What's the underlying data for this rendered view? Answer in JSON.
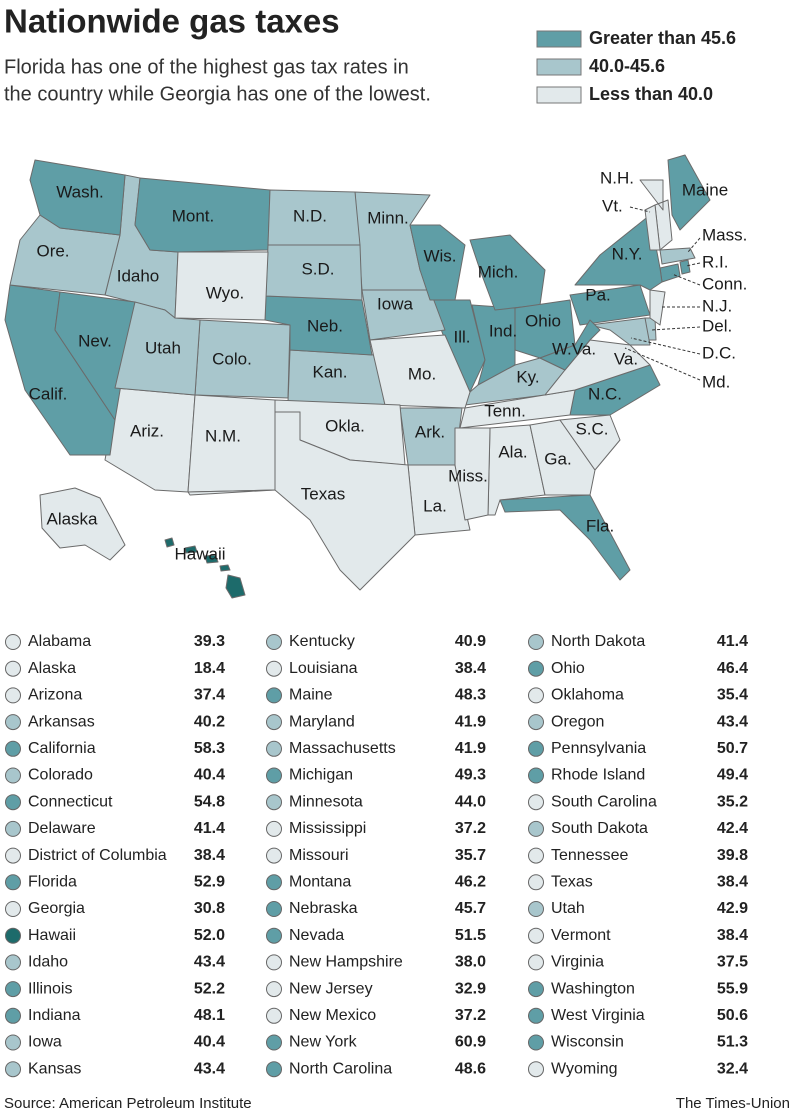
{
  "header": {
    "title": "Nationwide gas taxes",
    "subtitle": [
      "Florida has one of the highest gas tax rates in",
      "the country while Georgia has one of the lowest."
    ]
  },
  "legend": [
    {
      "label": "Greater than 45.6",
      "color": "#5f9ea6"
    },
    {
      "label": "40.0-45.6",
      "color": "#a8c6cc"
    },
    {
      "label": "Less than 40.0",
      "color": "#e2e9eb"
    }
  ],
  "table": {
    "rows": [
      {
        "name": "Alabama",
        "abbr": "Ala.",
        "value": 39.3,
        "color": "#e2e9eb"
      },
      {
        "name": "Alaska",
        "abbr": "Alaska",
        "value": 18.4,
        "color": "#e2e9eb"
      },
      {
        "name": "Arizona",
        "abbr": "Ariz.",
        "value": 37.4,
        "color": "#e2e9eb"
      },
      {
        "name": "Arkansas",
        "abbr": "Ark.",
        "value": 40.2,
        "color": "#a8c6cc"
      },
      {
        "name": "California",
        "abbr": "Calif.",
        "value": 58.3,
        "color": "#5f9ea6"
      },
      {
        "name": "Colorado",
        "abbr": "Colo.",
        "value": 40.4,
        "color": "#a8c6cc"
      },
      {
        "name": "Connecticut",
        "abbr": "Conn.",
        "value": 54.8,
        "color": "#5f9ea6"
      },
      {
        "name": "Delaware",
        "abbr": "Del.",
        "value": 41.4,
        "color": "#a8c6cc"
      },
      {
        "name": "District of Columbia",
        "abbr": "D.C.",
        "value": 38.4,
        "color": "#e2e9eb"
      },
      {
        "name": "Florida",
        "abbr": "Fla.",
        "value": 52.9,
        "color": "#5f9ea6"
      },
      {
        "name": "Georgia",
        "abbr": "Ga.",
        "value": 30.8,
        "color": "#e2e9eb"
      },
      {
        "name": "Hawaii",
        "abbr": "Hawaii",
        "value": 52,
        "label": "52.0",
        "color": "#1d6b6b"
      },
      {
        "name": "Idaho",
        "abbr": "Idaho",
        "value": 43.4,
        "color": "#a8c6cc"
      },
      {
        "name": "Illinois",
        "abbr": "Ill.",
        "value": 52.2,
        "color": "#5f9ea6"
      },
      {
        "name": "Indiana",
        "abbr": "Ind.",
        "value": 48.1,
        "color": "#5f9ea6"
      },
      {
        "name": "Iowa",
        "abbr": "Iowa",
        "value": 40.4,
        "color": "#a8c6cc"
      },
      {
        "name": "Kansas",
        "abbr": "Kan.",
        "value": 43.4,
        "color": "#a8c6cc"
      },
      {
        "name": "Kentucky",
        "abbr": "Ky.",
        "value": 40.9,
        "color": "#a8c6cc"
      },
      {
        "name": "Louisiana",
        "abbr": "La.",
        "value": 38.4,
        "color": "#e2e9eb"
      },
      {
        "name": "Maine",
        "abbr": "Maine",
        "value": 48.3,
        "color": "#5f9ea6"
      },
      {
        "name": "Maryland",
        "abbr": "Md.",
        "value": 41.9,
        "color": "#a8c6cc"
      },
      {
        "name": "Massachusetts",
        "abbr": "Mass.",
        "value": 41.9,
        "color": "#a8c6cc"
      },
      {
        "name": "Michigan",
        "abbr": "Mich.",
        "value": 49.3,
        "color": "#5f9ea6"
      },
      {
        "name": "Minnesota",
        "abbr": "Minn.",
        "value": 44,
        "label": "44.0",
        "color": "#a8c6cc"
      },
      {
        "name": "Mississippi",
        "abbr": "Miss.",
        "value": 37.2,
        "color": "#e2e9eb"
      },
      {
        "name": "Missouri",
        "abbr": "Mo.",
        "value": 35.7,
        "color": "#e2e9eb"
      },
      {
        "name": "Montana",
        "abbr": "Mont.",
        "value": 46.2,
        "color": "#5f9ea6"
      },
      {
        "name": "Nebraska",
        "abbr": "Neb.",
        "value": 45.7,
        "color": "#5f9ea6"
      },
      {
        "name": "Nevada",
        "abbr": "Nev.",
        "value": 51.5,
        "color": "#5f9ea6"
      },
      {
        "name": "New Hampshire",
        "abbr": "N.H.",
        "value": 38,
        "label": "38.0",
        "color": "#e2e9eb"
      },
      {
        "name": "New Jersey",
        "abbr": "N.J.",
        "value": 32.9,
        "color": "#e2e9eb"
      },
      {
        "name": "New Mexico",
        "abbr": "N.M.",
        "value": 37.2,
        "color": "#e2e9eb"
      },
      {
        "name": "New York",
        "abbr": "N.Y.",
        "value": 60.9,
        "color": "#5f9ea6"
      },
      {
        "name": "North Carolina",
        "abbr": "N.C.",
        "value": 48.6,
        "color": "#5f9ea6"
      },
      {
        "name": "North Dakota",
        "abbr": "N.D.",
        "value": 41.4,
        "color": "#a8c6cc"
      },
      {
        "name": "Ohio",
        "abbr": "Ohio",
        "value": 46.4,
        "color": "#5f9ea6"
      },
      {
        "name": "Oklahoma",
        "abbr": "Okla.",
        "value": 35.4,
        "color": "#e2e9eb"
      },
      {
        "name": "Oregon",
        "abbr": "Ore.",
        "value": 43.4,
        "color": "#a8c6cc"
      },
      {
        "name": "Pennsylvania",
        "abbr": "Pa.",
        "value": 50.7,
        "color": "#5f9ea6"
      },
      {
        "name": "Rhode Island",
        "abbr": "R.I.",
        "value": 49.4,
        "color": "#5f9ea6"
      },
      {
        "name": "South Carolina",
        "abbr": "S.C.",
        "value": 35.2,
        "color": "#e2e9eb"
      },
      {
        "name": "South Dakota",
        "abbr": "S.D.",
        "value": 42.4,
        "color": "#a8c6cc"
      },
      {
        "name": "Tennessee",
        "abbr": "Tenn.",
        "value": 39.8,
        "color": "#e2e9eb"
      },
      {
        "name": "Texas",
        "abbr": "Texas",
        "value": 38.4,
        "color": "#e2e9eb"
      },
      {
        "name": "Utah",
        "abbr": "Utah",
        "value": 42.9,
        "color": "#a8c6cc"
      },
      {
        "name": "Vermont",
        "abbr": "Vt.",
        "value": 38.4,
        "color": "#e2e9eb"
      },
      {
        "name": "Virginia",
        "abbr": "Va.",
        "value": 37.5,
        "color": "#e2e9eb"
      },
      {
        "name": "Washington",
        "abbr": "Wash.",
        "value": 55.9,
        "color": "#5f9ea6"
      },
      {
        "name": "West Virginia",
        "abbr": "W.Va.",
        "value": 50.6,
        "color": "#5f9ea6"
      },
      {
        "name": "Wisconsin",
        "abbr": "Wis.",
        "value": 51.3,
        "color": "#5f9ea6"
      },
      {
        "name": "Wyoming",
        "abbr": "Wyo.",
        "value": 32.4,
        "color": "#e2e9eb"
      }
    ]
  },
  "footer": {
    "source": "Source: American Petroleum Institute",
    "credit": "The Times-Union"
  }
}
